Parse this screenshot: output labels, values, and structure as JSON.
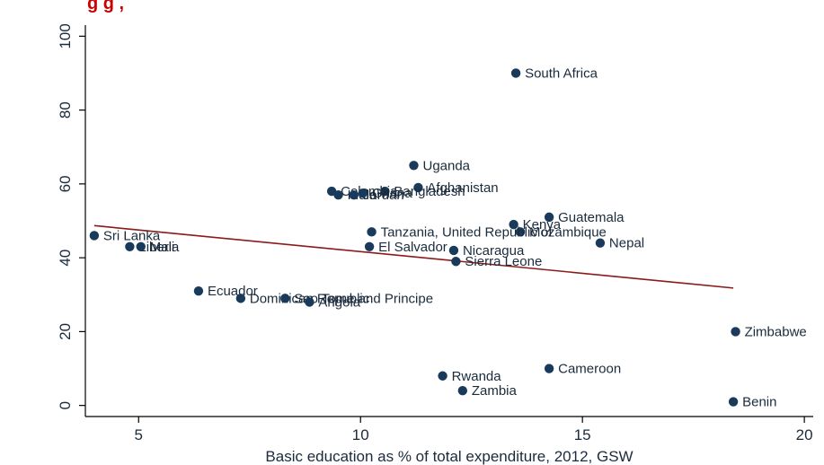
{
  "title_fragment": "g                                                                          g         ,",
  "chart_data": {
    "type": "scatter",
    "title": "",
    "xlabel": "Basic education as % of total expenditure, 2012, GSW",
    "ylabel": "",
    "xlim": [
      3.8,
      20.2
    ],
    "ylim": [
      -3,
      103
    ],
    "xticks": [
      5,
      10,
      15,
      20
    ],
    "yticks": [
      0,
      20,
      40,
      60,
      80,
      100
    ],
    "grid": false,
    "colors": {
      "point": "#1a3a5c",
      "fit_line": "#8b1a1a",
      "axis": "#000000",
      "title": "#cc0000"
    },
    "points": [
      {
        "label": "South Africa",
        "x": 13.5,
        "y": 90
      },
      {
        "label": "Uganda",
        "x": 11.2,
        "y": 65
      },
      {
        "label": "Afghanistan",
        "x": 11.3,
        "y": 59
      },
      {
        "label": "Bangladesh",
        "x": 10.55,
        "y": 58
      },
      {
        "label": "Colombia",
        "x": 9.35,
        "y": 58
      },
      {
        "label": "India",
        "x": 9.5,
        "y": 57
      },
      {
        "label": "Jordan",
        "x": 9.85,
        "y": 57
      },
      {
        "label": "Ghana",
        "x": 10.05,
        "y": 57.5
      },
      {
        "label": "Guatemala",
        "x": 14.25,
        "y": 51
      },
      {
        "label": "Kenya",
        "x": 13.45,
        "y": 49
      },
      {
        "label": "Mozambique",
        "x": 13.6,
        "y": 47
      },
      {
        "label": "Tanzania, United Republic of",
        "x": 10.25,
        "y": 47
      },
      {
        "label": "Sri Lanka",
        "x": 4.0,
        "y": 46
      },
      {
        "label": "Nepal",
        "x": 15.4,
        "y": 44
      },
      {
        "label": "Liberia",
        "x": 4.8,
        "y": 43
      },
      {
        "label": "Mali",
        "x": 5.05,
        "y": 43
      },
      {
        "label": "El Salvador",
        "x": 10.2,
        "y": 43
      },
      {
        "label": "Nicaragua",
        "x": 12.1,
        "y": 42
      },
      {
        "label": "Sierra Leone",
        "x": 12.15,
        "y": 39
      },
      {
        "label": "Ecuador",
        "x": 6.35,
        "y": 31
      },
      {
        "label": "Dominican Republic",
        "x": 7.3,
        "y": 29
      },
      {
        "label": "Sao Tome and Principe",
        "x": 8.3,
        "y": 29
      },
      {
        "label": "Angola",
        "x": 8.85,
        "y": 28
      },
      {
        "label": "Zimbabwe",
        "x": 18.45,
        "y": 20
      },
      {
        "label": "Cameroon",
        "x": 14.25,
        "y": 10
      },
      {
        "label": "Rwanda",
        "x": 11.85,
        "y": 8
      },
      {
        "label": "Zambia",
        "x": 12.3,
        "y": 4
      },
      {
        "label": "Benin",
        "x": 18.4,
        "y": 1
      }
    ],
    "fit_line": {
      "x": [
        4.0,
        18.4
      ],
      "y": [
        48.7,
        31.8
      ]
    }
  }
}
